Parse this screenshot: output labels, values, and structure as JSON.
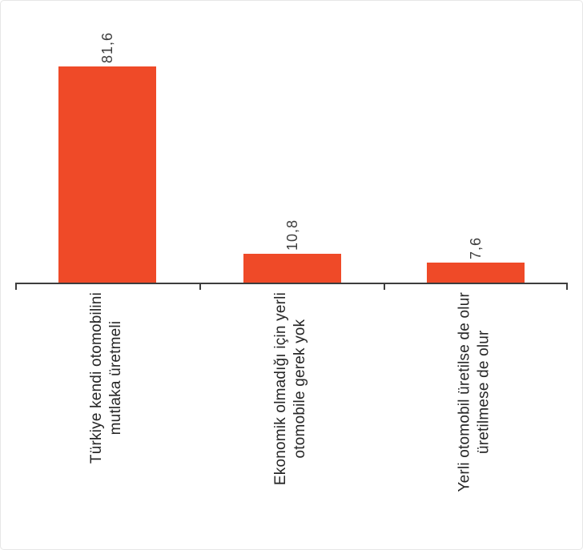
{
  "chart_data": {
    "type": "bar",
    "title": "",
    "xlabel": "",
    "ylabel": "",
    "categories": [
      {
        "line1": "Türkiye kendi otomobilini",
        "line2": "mutlaka üretmeli"
      },
      {
        "line1": "Ekonomik olmadığı için yerli",
        "line2": "otomobile gerek yok"
      },
      {
        "line1": "Yerli otomobil üretilse de olur",
        "line2": "üretilmese de olur"
      }
    ],
    "values": [
      81.6,
      10.8,
      7.6
    ],
    "value_labels": [
      "81,6",
      "10,8",
      "7,6"
    ],
    "ylim": [
      0,
      90
    ],
    "grid": false,
    "legend": false,
    "category_label_rotation_deg": 90,
    "decimal_separator": ",",
    "colors": {
      "bar": "#EF4A28",
      "axis": "#3D3D3D",
      "category_text": "#262626",
      "value_text": "#3D3D3D"
    }
  }
}
